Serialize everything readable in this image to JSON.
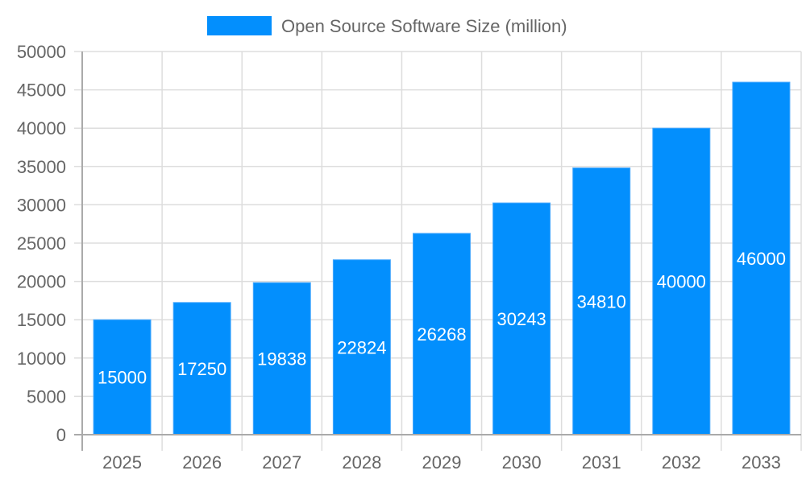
{
  "chart_data": {
    "type": "bar",
    "title": "",
    "xlabel": "",
    "ylabel": "",
    "categories": [
      "2025",
      "2026",
      "2027",
      "2028",
      "2029",
      "2030",
      "2031",
      "2032",
      "2033"
    ],
    "series": [
      {
        "name": "Open Source Software Size (million)",
        "values": [
          15000,
          17250,
          19838,
          22824,
          26268,
          30243,
          34810,
          40000,
          46000
        ],
        "color": "#038ffd"
      }
    ],
    "ylim": [
      0,
      50000
    ],
    "yticks": [
      0,
      5000,
      10000,
      15000,
      20000,
      25000,
      30000,
      35000,
      40000,
      45000,
      50000
    ],
    "grid": true,
    "legend": "top-center",
    "data_labels": true
  }
}
